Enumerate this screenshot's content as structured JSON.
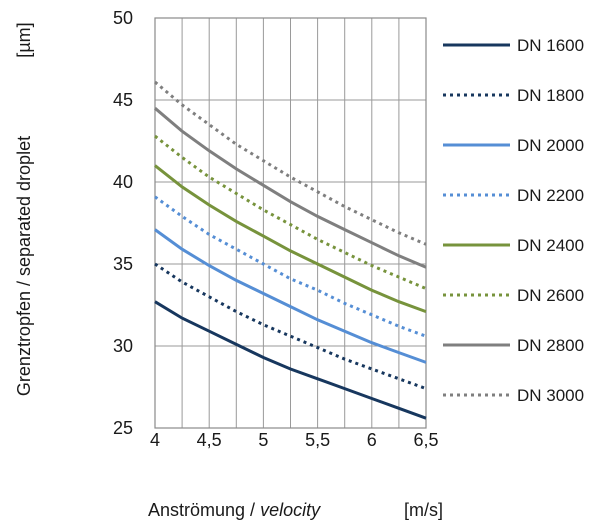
{
  "chart_data": {
    "type": "line",
    "xlabel": {
      "prefix": "Anströmung / ",
      "italic": "velocity",
      "unit": "[m/s]"
    },
    "ylabel": {
      "text": "Grenztropfen / separated droplet",
      "unit": "[µm]"
    },
    "xlim": [
      4,
      6.5
    ],
    "ylim": [
      25,
      50
    ],
    "x_ticks": [
      4,
      4.5,
      5,
      5.5,
      6,
      6.5
    ],
    "x_tick_labels": [
      "4",
      "4,5",
      "5",
      "5,5",
      "6",
      "6,5"
    ],
    "y_ticks": [
      25,
      30,
      35,
      40,
      45,
      50
    ],
    "y_tick_labels": [
      "25",
      "30",
      "35",
      "40",
      "45",
      "50"
    ],
    "grid": true,
    "legend_position": "right",
    "x": [
      4,
      4.25,
      4.5,
      4.75,
      5,
      5.25,
      5.5,
      5.75,
      6,
      6.25,
      6.5
    ],
    "series": [
      {
        "name": "DN 1600",
        "color": "#17375e",
        "dash": "solid",
        "values": [
          32.7,
          31.7,
          30.9,
          30.1,
          29.3,
          28.6,
          28.0,
          27.4,
          26.8,
          26.2,
          25.6
        ]
      },
      {
        "name": "DN 1800",
        "color": "#17375e",
        "dash": "dotted",
        "values": [
          35.0,
          33.9,
          33.0,
          32.1,
          31.3,
          30.6,
          29.9,
          29.2,
          28.6,
          28.0,
          27.4
        ]
      },
      {
        "name": "DN 2000",
        "color": "#558ed5",
        "dash": "solid",
        "values": [
          37.1,
          35.9,
          34.9,
          34.0,
          33.2,
          32.4,
          31.6,
          30.9,
          30.2,
          29.6,
          29.0
        ]
      },
      {
        "name": "DN 2200",
        "color": "#558ed5",
        "dash": "dotted",
        "values": [
          39.1,
          37.9,
          36.8,
          35.9,
          35.0,
          34.1,
          33.4,
          32.6,
          31.9,
          31.2,
          30.6
        ]
      },
      {
        "name": "DN 2400",
        "color": "#77933c",
        "dash": "solid",
        "values": [
          41.0,
          39.7,
          38.6,
          37.6,
          36.7,
          35.8,
          35.0,
          34.2,
          33.4,
          32.7,
          32.1
        ]
      },
      {
        "name": "DN 2600",
        "color": "#77933c",
        "dash": "dotted",
        "values": [
          42.8,
          41.5,
          40.3,
          39.3,
          38.3,
          37.4,
          36.5,
          35.7,
          34.9,
          34.2,
          33.5
        ]
      },
      {
        "name": "DN 2800",
        "color": "#7f7f7f",
        "dash": "solid",
        "values": [
          44.5,
          43.1,
          41.9,
          40.8,
          39.8,
          38.8,
          37.9,
          37.1,
          36.3,
          35.5,
          34.8
        ]
      },
      {
        "name": "DN 3000",
        "color": "#7f7f7f",
        "dash": "dotted",
        "values": [
          46.1,
          44.7,
          43.5,
          42.3,
          41.3,
          40.3,
          39.4,
          38.5,
          37.7,
          36.9,
          36.2
        ]
      }
    ]
  }
}
